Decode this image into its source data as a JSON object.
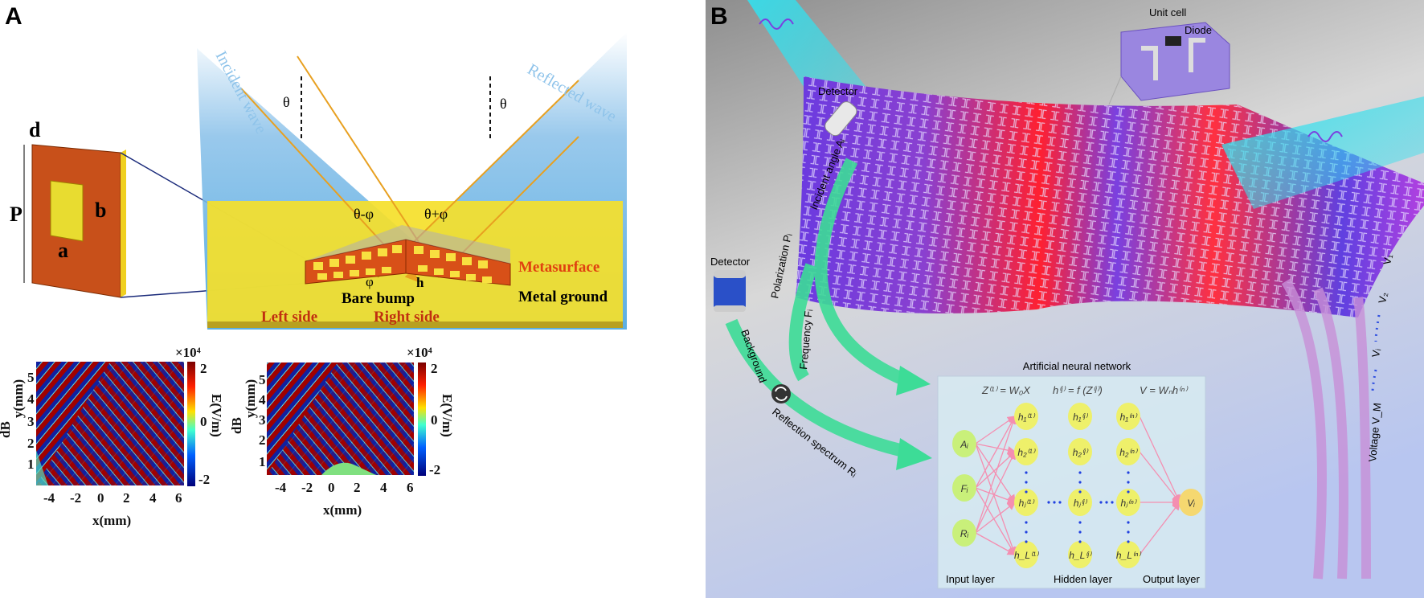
{
  "panel_a": {
    "label": "A",
    "unit_cell": {
      "d": "d",
      "P": "P",
      "a": "a",
      "b": "b"
    },
    "incident_wave": "Incident wave",
    "reflected_wave": "Reflected wave",
    "theta_left": "θ",
    "theta_right": "θ",
    "theta_minus_phi": "θ-φ",
    "theta_plus_phi": "θ+φ",
    "phi": "φ",
    "h": "h",
    "metasurface": "Metasurface",
    "bare_bump": "Bare bump",
    "metal_ground": "Metal ground",
    "left_side": "Left side",
    "right_side": "Right side",
    "field_maps": [
      {
        "ylabel_outer": "dB",
        "ylabel": "y(mm)",
        "xlabel": "x(mm)",
        "xticks": [
          "-4",
          "-2",
          "0",
          "2",
          "4",
          "6"
        ],
        "yticks": [
          "1",
          "2",
          "3",
          "4",
          "5"
        ],
        "colorbar_label": "E(V/m)",
        "colorbar_scale": "×10⁴",
        "colorbar_ticks": [
          "2",
          "0",
          "-2"
        ]
      },
      {
        "ylabel_outer": "dB",
        "ylabel": "y(mm)",
        "xlabel": "x(mm)",
        "xticks": [
          "-4",
          "-2",
          "0",
          "2",
          "4",
          "6"
        ],
        "yticks": [
          "1",
          "2",
          "3",
          "4",
          "5"
        ],
        "colorbar_label": "E(V/m)",
        "colorbar_scale": "×10⁴",
        "colorbar_ticks": [
          "2",
          "0",
          "-2"
        ]
      }
    ]
  },
  "panel_b": {
    "label": "B",
    "unit_cell": "Unit cell",
    "diode": "Diode",
    "detector_top": "Detector",
    "detector_left": "Detector",
    "incident_angle": "Incident angle Aᵢ",
    "polarization": "Polarization Pᵢ",
    "frequency": "Frequency Fᵢ",
    "background": "Background",
    "reflection_spectrum": "Reflection spectrum Rᵢ",
    "voltages": [
      "V₁",
      "V₂",
      "Vᵢ",
      "Voltage V_M"
    ],
    "ann": {
      "title": "Artificial neural network",
      "formula_1": "Z⁽¹⁾ = W₀X",
      "formula_2": "h⁽ʲ⁾ = f (Z⁽ʲ⁾)",
      "formula_3": "V = Wₙh⁽ⁿ⁾",
      "inputs": [
        "Aᵢ",
        "Fᵢ",
        "Rᵢ"
      ],
      "hidden_1": [
        "h₁⁽¹⁾",
        "h₂⁽¹⁾",
        "hⱼ⁽¹⁾",
        "h_L⁽¹⁾"
      ],
      "hidden_j": [
        "h₁⁽ʲ⁾",
        "h₂⁽ʲ⁾",
        "hⱼ⁽ʲ⁾",
        "h_L⁽ʲ⁾"
      ],
      "hidden_n": [
        "h₁⁽ⁿ⁾",
        "h₂⁽ⁿ⁾",
        "hⱼ⁽ⁿ⁾",
        "h_L⁽ⁿ⁾"
      ],
      "output": "Vᵢ",
      "input_layer": "Input layer",
      "hidden_layer": "Hidden layer",
      "output_layer": "Output layer"
    },
    "colors": {
      "beam": "#33e0ee",
      "arrow": "#3ddc97",
      "node": "#eef06a",
      "input_node": "#c9f07a",
      "output_node": "#f5d870",
      "edge": "#f48fb1",
      "surface_red": "#ff2030",
      "surface_blue": "#5a3ee0"
    }
  }
}
